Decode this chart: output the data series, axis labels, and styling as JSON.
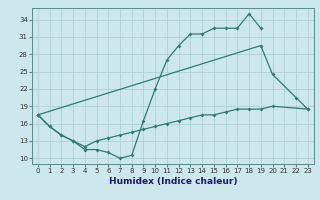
{
  "xlabel": "Humidex (Indice chaleur)",
  "bg_color": "#cce8ed",
  "line_color": "#2e7d6e",
  "grid_color": "#aacccc",
  "ylim": [
    9,
    36
  ],
  "xlim": [
    -0.5,
    23.5
  ],
  "yticks": [
    10,
    13,
    16,
    19,
    22,
    25,
    28,
    31,
    34
  ],
  "xticks": [
    0,
    1,
    2,
    3,
    4,
    5,
    6,
    7,
    8,
    9,
    10,
    11,
    12,
    13,
    14,
    15,
    16,
    17,
    18,
    19,
    20,
    21,
    22,
    23
  ],
  "line1_x": [
    0,
    1,
    2,
    3,
    4,
    5,
    6,
    7,
    8,
    9,
    10,
    11,
    12,
    13,
    14,
    15,
    16,
    17,
    18,
    19
  ],
  "line1_y": [
    17.5,
    15.5,
    14.0,
    13.0,
    11.5,
    11.5,
    11.0,
    10.0,
    10.5,
    16.5,
    22.0,
    27.0,
    29.5,
    31.5,
    31.5,
    32.5,
    32.5,
    32.5,
    35.0,
    32.5
  ],
  "line2_x": [
    0,
    19,
    20,
    22,
    23
  ],
  "line2_y": [
    17.5,
    29.5,
    24.5,
    20.5,
    18.5
  ],
  "line3_x": [
    0,
    1,
    2,
    3,
    4,
    5,
    6,
    7,
    8,
    9,
    10,
    11,
    12,
    13,
    14,
    15,
    16,
    17,
    18,
    19,
    20,
    23
  ],
  "line3_y": [
    17.5,
    15.5,
    14.0,
    13.0,
    12.0,
    13.0,
    13.5,
    14.0,
    14.5,
    15.0,
    15.5,
    16.0,
    16.5,
    17.0,
    17.5,
    17.5,
    18.0,
    18.5,
    18.5,
    18.5,
    19.0,
    18.5
  ]
}
